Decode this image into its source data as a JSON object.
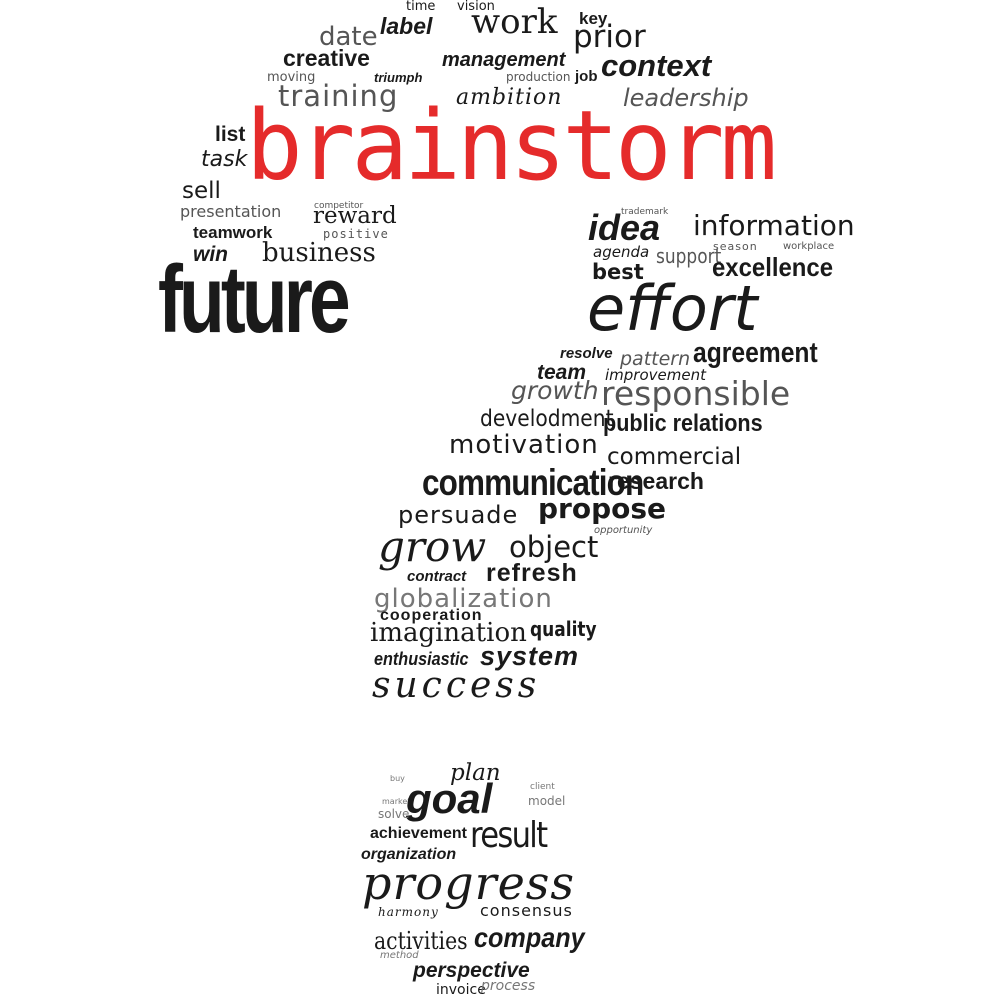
{
  "accent_color": "#e52b2b",
  "text_color": "#1a1a1a",
  "words": {
    "time": "time",
    "vision": "vision",
    "date": "date",
    "label": "label",
    "work": "work",
    "key": "key",
    "prior": "prior",
    "creative": "creative",
    "management": "management",
    "moving": "moving",
    "triumph": "triumph",
    "production": "production",
    "job": "job",
    "context": "context",
    "training": "training",
    "ambition": "ambition",
    "leadership": "leadership",
    "brainstorm": "brainstorm",
    "list": "list",
    "task": "task",
    "sell": "sell",
    "presentation": "presentation",
    "competitor": "competitor",
    "reward": "reward",
    "teamwork": "teamwork",
    "positive": "positive",
    "win": "win",
    "business": "business",
    "future": "future",
    "trademark": "trademark",
    "idea": "idea",
    "information": "information",
    "season": "season",
    "workplace": "workplace",
    "agenda": "agenda",
    "support": "support",
    "best": "best",
    "excellence": "excellence",
    "effort": "effort",
    "resolve": "resolve",
    "pattern": "pattern",
    "agreement": "agreement",
    "team": "team",
    "improvement": "improvement",
    "growth": "growth",
    "responsible": "responsible",
    "develodment": "develodment",
    "public_relations": "public relations",
    "motivation": "motivation",
    "commercial": "commercial",
    "communication": "communication",
    "research": "research",
    "persuade": "persuade",
    "propose": "propose",
    "opportunity": "opportunity",
    "grow": "grow",
    "object": "object",
    "contract": "contract",
    "refresh": "refresh",
    "globalization": "globalization",
    "cooperation": "cooperation",
    "imagination": "imagination",
    "quality": "quality",
    "enthusiastic": "enthusiastic",
    "system": "system",
    "success": "success",
    "plan": "plan",
    "goal": "goal",
    "client": "client",
    "buy": "buy",
    "market": "market",
    "model": "model",
    "solve": "solve",
    "achievement": "achievement",
    "result": "result",
    "organization": "organization",
    "progress": "progress",
    "harmony": "harmony",
    "consensus": "consensus",
    "activities": "activities",
    "company": "company",
    "method": "method",
    "perspective": "perspective",
    "invoice": "invoice",
    "process": "process"
  }
}
